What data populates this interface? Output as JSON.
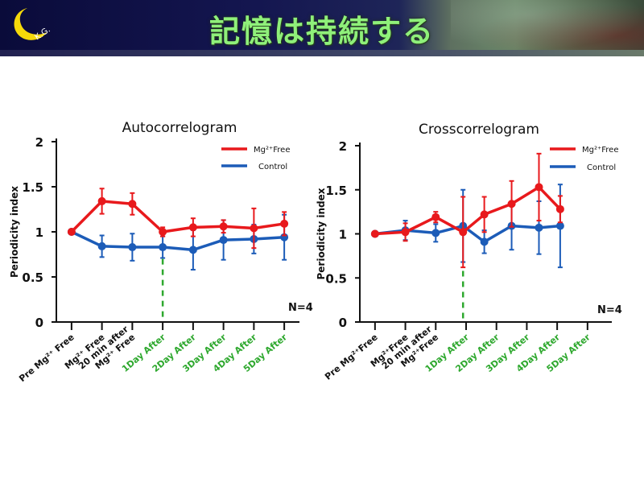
{
  "header": {
    "title": "記憶は持続する",
    "logo_text": "K.G.",
    "colors": {
      "title": "#8ff07a",
      "moon": "#f5d90a"
    }
  },
  "colors": {
    "mg_free": "#e8191c",
    "control": "#1c5cb8",
    "day_label": "#2ea82e"
  },
  "chart_data": [
    {
      "type": "line",
      "title": "Autocorrelogram",
      "xlabel": "",
      "ylabel": "Periodicity index",
      "ylim": [
        0,
        2
      ],
      "yticks": [
        "0",
        "0.5",
        "1",
        "1.5",
        "2"
      ],
      "categories": [
        "Pre Mg²⁺ Free",
        "Mg²⁺ Free",
        "20 min after\nMg²⁺ Free",
        "1Day After",
        "2Day After",
        "3Day After",
        "4Day After",
        "5Day After"
      ],
      "category_lines": [
        [
          "Pre Mg²⁺ Free"
        ],
        [
          "Mg²⁺ Free"
        ],
        [
          "20 min after",
          "Mg²⁺ Free"
        ],
        [
          "1Day After"
        ],
        [
          "2Day After"
        ],
        [
          "3Day After"
        ],
        [
          "4Day After"
        ],
        [
          "5Day After"
        ]
      ],
      "category_is_day": [
        false,
        false,
        false,
        true,
        true,
        true,
        true,
        true
      ],
      "x_positions": [
        1,
        2,
        3,
        4,
        5,
        6,
        7,
        8
      ],
      "xlim": [
        0.5,
        8.5
      ],
      "series": [
        {
          "name": "Mg²⁺Free",
          "color_key": "mg_free",
          "x": [
            1,
            2,
            3,
            4,
            5,
            6,
            7,
            8
          ],
          "values": [
            1.0,
            1.34,
            1.31,
            1.0,
            1.05,
            1.06,
            1.04,
            1.09
          ],
          "errors": [
            0.0,
            0.14,
            0.12,
            0.05,
            0.1,
            0.07,
            0.22,
            0.13
          ]
        },
        {
          "name": "Control",
          "color_key": "control",
          "x": [
            1,
            2,
            3,
            4,
            5,
            6,
            7,
            8
          ],
          "values": [
            1.0,
            0.84,
            0.83,
            0.83,
            0.8,
            0.91,
            0.92,
            0.94
          ],
          "errors": [
            0.0,
            0.12,
            0.15,
            0.12,
            0.22,
            0.22,
            0.16,
            0.25
          ]
        }
      ],
      "marker_line_x": 4,
      "marker_line_top": 0.7,
      "annotation": "N=4",
      "legend": [
        "Mg²⁺Free",
        "Control"
      ],
      "legend_position": "top-right"
    },
    {
      "type": "line",
      "title": "Crosscorrelogram",
      "xlabel": "",
      "ylabel": "Periodicity index",
      "ylim": [
        0,
        2
      ],
      "yticks": [
        "0",
        "0.5",
        "1",
        "1.5",
        "2"
      ],
      "categories": [
        "Pre Mg²⁺Free",
        "Mg²⁺Free",
        "20 min after\nMg²⁺Free",
        "1Day After",
        "2Day After",
        "3Day After",
        "4Day After",
        "5Day After"
      ],
      "category_lines": [
        [
          "Pre Mg²⁺Free"
        ],
        [
          "Mg²⁺Free"
        ],
        [
          "20 min after",
          "Mg²⁺Free"
        ],
        [
          "1Day After"
        ],
        [
          "2Day After"
        ],
        [
          "3Day After"
        ],
        [
          "4Day After"
        ],
        [
          "5Day After"
        ]
      ],
      "category_is_day": [
        false,
        false,
        false,
        true,
        true,
        true,
        true,
        true
      ],
      "x_positions": [
        1,
        2,
        3,
        4,
        5,
        6,
        7,
        8
      ],
      "xlim": [
        0.5,
        8.8
      ],
      "series": [
        {
          "name": "Mg²⁺Free",
          "color_key": "mg_free",
          "x": [
            1,
            2,
            3,
            3.9,
            4.6,
            5.5,
            6.4,
            7.1
          ],
          "values": [
            1.0,
            1.02,
            1.19,
            1.02,
            1.22,
            1.34,
            1.53,
            1.28
          ],
          "errors": [
            0.0,
            0.1,
            0.06,
            0.4,
            0.2,
            0.26,
            0.38,
            0.15
          ]
        },
        {
          "name": "Control",
          "color_key": "control",
          "x": [
            1,
            2,
            3,
            3.9,
            4.6,
            5.5,
            6.4,
            7.1
          ],
          "values": [
            1.0,
            1.04,
            1.01,
            1.09,
            0.91,
            1.09,
            1.07,
            1.09
          ],
          "errors": [
            0.0,
            0.11,
            0.1,
            0.41,
            0.13,
            0.27,
            0.3,
            0.47
          ]
        }
      ],
      "marker_line_x": 3.9,
      "marker_line_top": 0.58,
      "annotation": "N=4",
      "legend": [
        "Mg²⁺Free",
        "Control"
      ],
      "legend_position": "top-right"
    }
  ]
}
